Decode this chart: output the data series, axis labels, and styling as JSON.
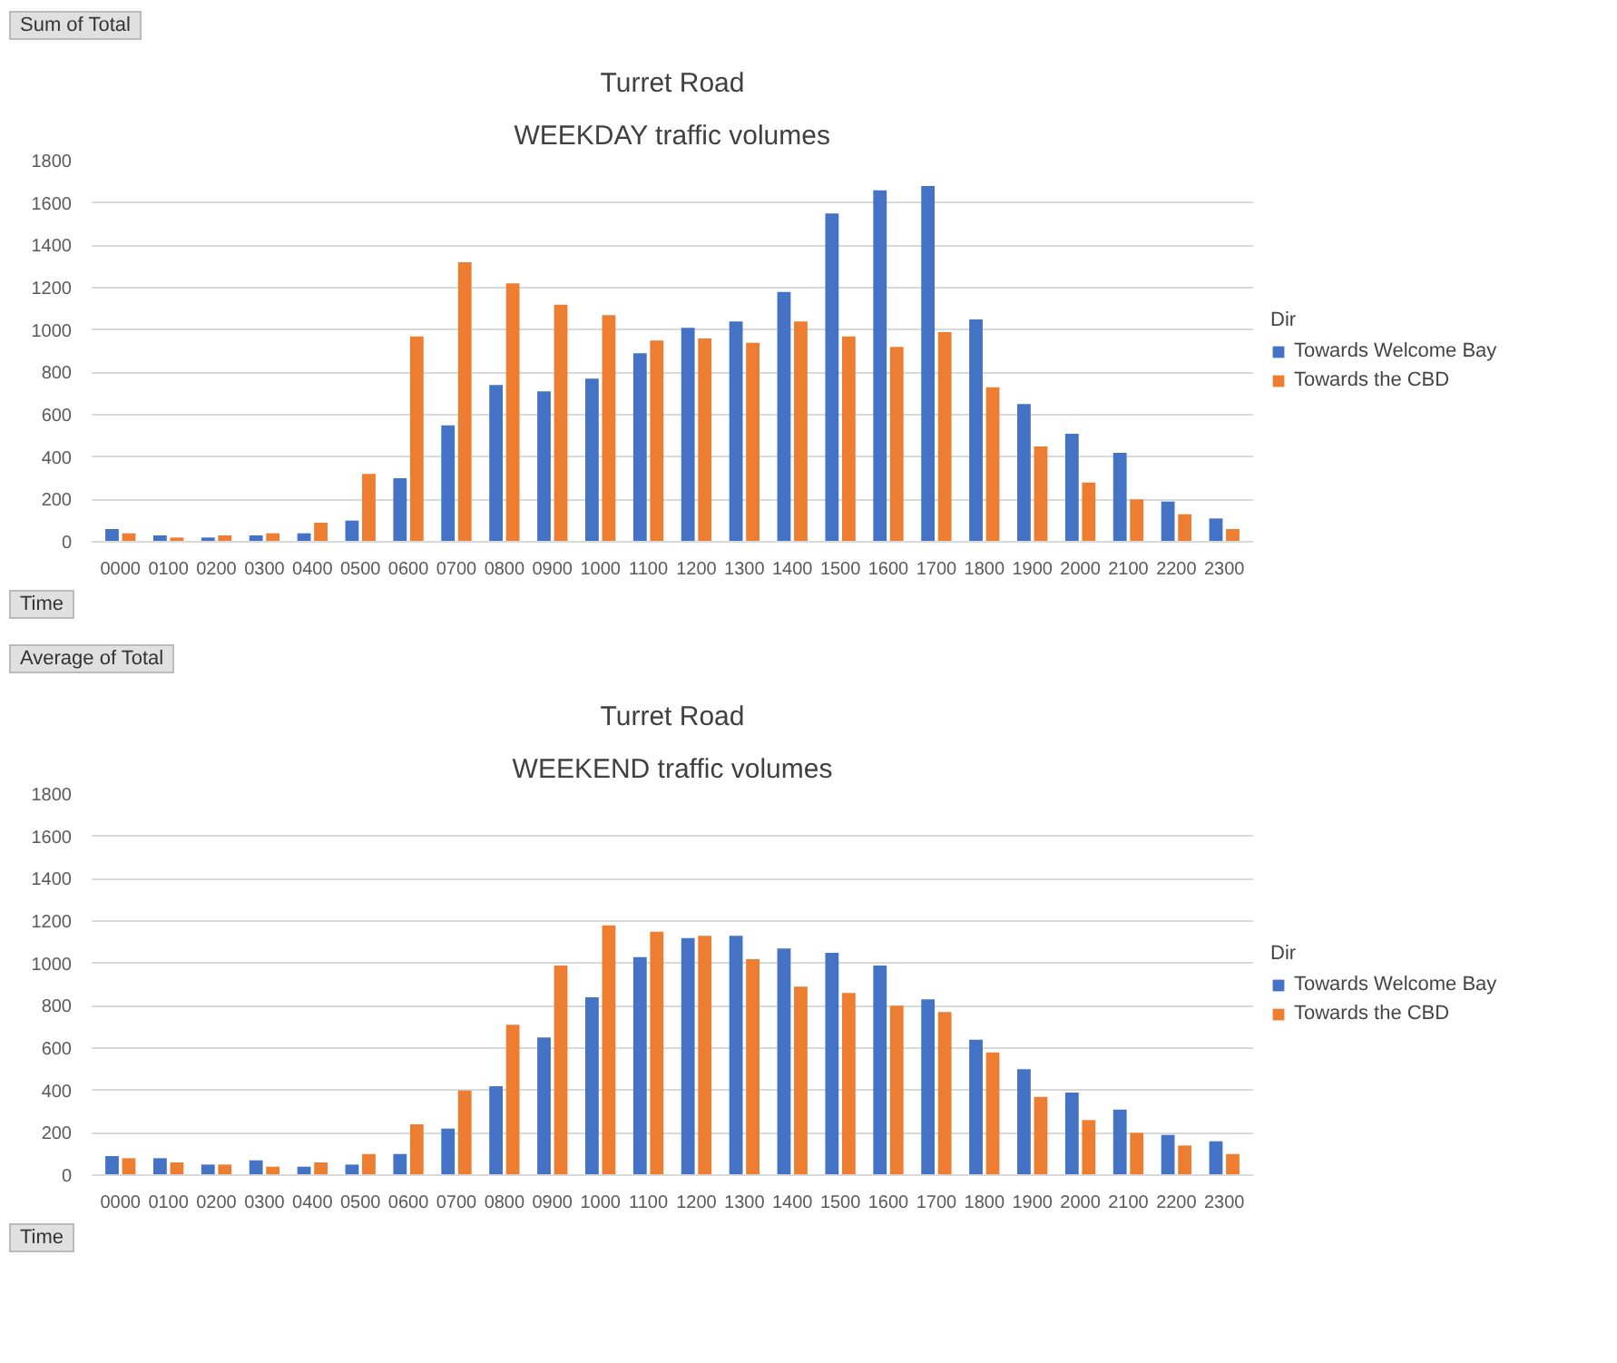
{
  "chart_data": [
    {
      "type": "bar",
      "title": "Turret Road",
      "subtitle": "WEEKDAY traffic volumes",
      "annotations": [
        "Sum of Total",
        "Time"
      ],
      "legend_title": "Dir",
      "legend": "right",
      "grid": "y",
      "categories": [
        "0000",
        "0100",
        "0200",
        "0300",
        "0400",
        "0500",
        "0600",
        "0700",
        "0800",
        "0900",
        "1000",
        "1100",
        "1200",
        "1300",
        "1400",
        "1500",
        "1600",
        "1700",
        "1800",
        "1900",
        "2000",
        "2100",
        "2200",
        "2300"
      ],
      "ylim": [
        0,
        1800
      ],
      "yticks": [
        0,
        200,
        400,
        600,
        800,
        1000,
        1200,
        1400,
        1600,
        1800
      ],
      "series": [
        {
          "name": "Towards Welcome Bay",
          "color": "#4472c4",
          "values": [
            60,
            30,
            20,
            30,
            40,
            100,
            300,
            550,
            740,
            710,
            770,
            890,
            1010,
            1040,
            1180,
            1550,
            1660,
            1680,
            1050,
            650,
            510,
            420,
            190,
            110
          ]
        },
        {
          "name": "Towards the CBD",
          "color": "#ed7d31",
          "values": [
            40,
            20,
            30,
            40,
            90,
            320,
            970,
            1320,
            1220,
            1120,
            1070,
            950,
            960,
            940,
            1040,
            970,
            920,
            990,
            730,
            450,
            280,
            200,
            130,
            60
          ]
        }
      ]
    },
    {
      "type": "bar",
      "title": "Turret Road",
      "subtitle": "WEEKEND traffic volumes",
      "annotations": [
        "Average of Total",
        "Time"
      ],
      "legend_title": "Dir",
      "legend": "right",
      "grid": "y",
      "categories": [
        "0000",
        "0100",
        "0200",
        "0300",
        "0400",
        "0500",
        "0600",
        "0700",
        "0800",
        "0900",
        "1000",
        "1100",
        "1200",
        "1300",
        "1400",
        "1500",
        "1600",
        "1700",
        "1800",
        "1900",
        "2000",
        "2100",
        "2200",
        "2300"
      ],
      "ylim": [
        0,
        1800
      ],
      "yticks": [
        0,
        200,
        400,
        600,
        800,
        1000,
        1200,
        1400,
        1600,
        1800
      ],
      "series": [
        {
          "name": "Towards Welcome Bay",
          "color": "#4472c4",
          "values": [
            90,
            80,
            50,
            70,
            40,
            50,
            100,
            220,
            420,
            650,
            840,
            1030,
            1120,
            1130,
            1070,
            1050,
            990,
            830,
            640,
            500,
            390,
            310,
            190,
            160
          ]
        },
        {
          "name": "Towards the CBD",
          "color": "#ed7d31",
          "values": [
            80,
            60,
            50,
            40,
            60,
            100,
            240,
            400,
            710,
            990,
            1180,
            1150,
            1130,
            1020,
            890,
            860,
            800,
            770,
            580,
            370,
            260,
            200,
            140,
            100
          ]
        }
      ]
    }
  ]
}
